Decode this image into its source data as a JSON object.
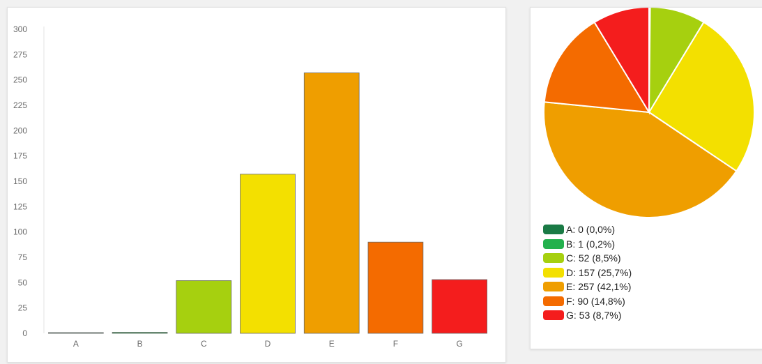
{
  "chart_data": [
    {
      "type": "bar",
      "categories": [
        "A",
        "B",
        "C",
        "D",
        "E",
        "F",
        "G"
      ],
      "values": [
        0,
        1,
        52,
        157,
        257,
        90,
        53
      ],
      "colors": [
        "#1a7a45",
        "#23b14d",
        "#a6d00f",
        "#f3e000",
        "#ef9e00",
        "#f46b00",
        "#f41d1d"
      ],
      "yticks": [
        0,
        25,
        50,
        75,
        100,
        125,
        150,
        175,
        200,
        225,
        250,
        275,
        300
      ],
      "ylim": [
        0,
        300
      ],
      "grid": false
    },
    {
      "type": "pie",
      "categories": [
        "A",
        "B",
        "C",
        "D",
        "E",
        "F",
        "G"
      ],
      "values": [
        0,
        1,
        52,
        157,
        257,
        90,
        53
      ],
      "percent_labels": [
        "0,0%",
        "0,2%",
        "8,5%",
        "25,7%",
        "42,1%",
        "14,8%",
        "8,7%"
      ],
      "colors": [
        "#1a7a45",
        "#23b14d",
        "#a6d00f",
        "#f3e000",
        "#ef9e00",
        "#f46b00",
        "#f41d1d"
      ],
      "legend_position": "bottom-left"
    }
  ],
  "legend": {
    "items": [
      "A: 0 (0,0%)",
      "B: 1 (0,2%)",
      "C: 52 (8,5%)",
      "D: 157 (25,7%)",
      "E: 257 (42,1%)",
      "F: 90 (14,8%)",
      "G: 53 (8,7%)"
    ]
  }
}
